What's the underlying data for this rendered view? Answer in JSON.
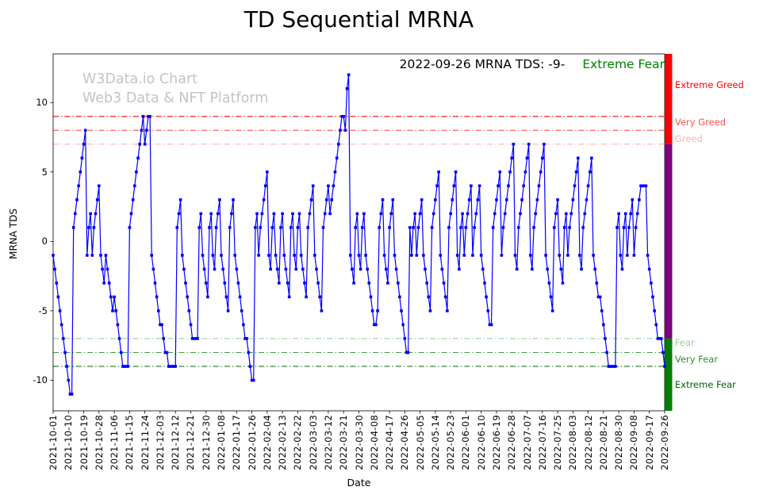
{
  "title": "TD Sequential MRNA",
  "annotation": {
    "text": "2022-09-26 MRNA TDS: -9-",
    "sentiment": "Extreme Fear",
    "sentiment_color": "#008000"
  },
  "watermark": {
    "line1": "W3Data.io Chart",
    "line2": "Web3 Data & NFT Platform"
  },
  "chart_data": {
    "type": "line",
    "title": "TD Sequential MRNA",
    "xlabel": "Date",
    "ylabel": "MRNA TDS",
    "ylim": [
      -12.2,
      13.5
    ],
    "yticks": [
      -10,
      -5,
      0,
      5,
      10
    ],
    "grid": false,
    "line_color": "#0000ff",
    "marker": "square",
    "x_tick_step": 9,
    "x_tick_labels": [
      "2021-10-01",
      "2021-10-10",
      "2021-10-19",
      "2021-10-28",
      "2021-11-06",
      "2021-11-15",
      "2021-11-24",
      "2021-12-03",
      "2021-12-12",
      "2021-12-21",
      "2021-12-30",
      "2022-01-08",
      "2022-01-17",
      "2022-01-26",
      "2022-02-04",
      "2022-02-13",
      "2022-02-22",
      "2022-03-03",
      "2022-03-12",
      "2022-03-21",
      "2022-03-30",
      "2022-04-08",
      "2022-04-17",
      "2022-04-26",
      "2022-05-05",
      "2022-05-14",
      "2022-05-23",
      "2022-06-01",
      "2022-06-10",
      "2022-06-19",
      "2022-06-28",
      "2022-07-07",
      "2022-07-16",
      "2022-07-25",
      "2022-08-03",
      "2022-08-12",
      "2022-08-21",
      "2022-08-30",
      "2022-09-08",
      "2022-09-17",
      "2022-09-26"
    ],
    "values": [
      -1,
      -2,
      -3,
      -4,
      -5,
      -6,
      -7,
      -8,
      -9,
      -10,
      -11,
      -11,
      1,
      2,
      3,
      4,
      5,
      6,
      7,
      8,
      -1,
      1,
      2,
      -1,
      1,
      2,
      3,
      4,
      -1,
      -2,
      -3,
      -1,
      -2,
      -3,
      -4,
      -5,
      -4,
      -5,
      -6,
      -7,
      -8,
      -9,
      -9,
      -9,
      -9,
      1,
      2,
      3,
      4,
      5,
      6,
      7,
      8,
      9,
      7,
      8,
      9,
      9,
      -1,
      -2,
      -3,
      -4,
      -5,
      -6,
      -6,
      -7,
      -8,
      -8,
      -9,
      -9,
      -9,
      -9,
      -9,
      1,
      2,
      3,
      -1,
      -2,
      -3,
      -4,
      -5,
      -6,
      -7,
      -7,
      -7,
      -7,
      1,
      2,
      -1,
      -2,
      -3,
      -4,
      1,
      2,
      -1,
      -2,
      1,
      2,
      3,
      -1,
      -2,
      -3,
      -4,
      -5,
      1,
      2,
      3,
      -1,
      -2,
      -3,
      -4,
      -5,
      -6,
      -7,
      -7,
      -8,
      -9,
      -10,
      -10,
      1,
      2,
      -1,
      1,
      2,
      3,
      4,
      5,
      -1,
      -2,
      1,
      2,
      -1,
      -2,
      -3,
      1,
      2,
      -1,
      -2,
      -3,
      -4,
      1,
      2,
      -1,
      -2,
      1,
      2,
      -1,
      -2,
      -3,
      -4,
      1,
      2,
      3,
      4,
      -1,
      -2,
      -3,
      -4,
      -5,
      1,
      2,
      3,
      4,
      2,
      3,
      4,
      5,
      6,
      7,
      8,
      9,
      9,
      8,
      11,
      12,
      -1,
      -2,
      -3,
      1,
      2,
      -1,
      -2,
      1,
      2,
      -1,
      -2,
      -3,
      -4,
      -5,
      -6,
      -6,
      -5,
      1,
      2,
      3,
      -1,
      -2,
      -3,
      1,
      2,
      3,
      -1,
      -2,
      -3,
      -4,
      -5,
      -6,
      -7,
      -8,
      -8,
      1,
      -1,
      1,
      2,
      -1,
      1,
      2,
      3,
      -1,
      -2,
      -3,
      -4,
      -5,
      1,
      2,
      3,
      4,
      5,
      -1,
      -2,
      -3,
      -4,
      -5,
      1,
      2,
      3,
      4,
      5,
      -1,
      -2,
      1,
      2,
      -1,
      1,
      2,
      3,
      4,
      -1,
      1,
      2,
      3,
      4,
      -1,
      -2,
      -3,
      -4,
      -5,
      -6,
      -6,
      1,
      2,
      3,
      4,
      5,
      -1,
      1,
      2,
      3,
      4,
      5,
      6,
      7,
      -1,
      -2,
      1,
      2,
      3,
      4,
      5,
      6,
      7,
      -1,
      -2,
      1,
      2,
      3,
      4,
      5,
      6,
      7,
      -1,
      -2,
      -3,
      -4,
      -5,
      1,
      2,
      3,
      -1,
      -2,
      -3,
      1,
      2,
      -1,
      1,
      2,
      3,
      4,
      5,
      6,
      -1,
      -2,
      1,
      2,
      3,
      4,
      5,
      6,
      -1,
      -2,
      -3,
      -4,
      -4,
      -5,
      -6,
      -7,
      -8,
      -9,
      -9,
      -9,
      -9,
      -9,
      1,
      2,
      -1,
      -2,
      1,
      2,
      -1,
      1,
      2,
      3,
      -1,
      1,
      2,
      3,
      4,
      4,
      4,
      4,
      -1,
      -2,
      -3,
      -4,
      -5,
      -6,
      -7,
      -7,
      -7,
      -8,
      -9
    ],
    "thresholds": [
      {
        "value": 9,
        "color": "#ff0000"
      },
      {
        "value": 8,
        "color": "#ff5050"
      },
      {
        "value": 7,
        "color": "#ffb0b0"
      },
      {
        "value": -7,
        "color": "#9ccc9c"
      },
      {
        "value": -8,
        "color": "#3da03d"
      },
      {
        "value": -9,
        "color": "#006400"
      }
    ],
    "zone_labels": [
      {
        "text": "Extreme Greed",
        "y": 11.3,
        "color": "#ff0000"
      },
      {
        "text": "Very Greed",
        "y": 8.6,
        "color": "#ff5050"
      },
      {
        "text": "Greed",
        "y": 7.4,
        "color": "#ffb0b0"
      },
      {
        "text": "Fear",
        "y": -7.3,
        "color": "#9ccc9c"
      },
      {
        "text": "Very Fear",
        "y": -8.5,
        "color": "#2e8b2e"
      },
      {
        "text": "Extreme Fear",
        "y": -10.3,
        "color": "#006400"
      }
    ],
    "sentiment_bar": [
      {
        "from": 13.5,
        "to": 7,
        "color": "#ff0000"
      },
      {
        "from": 7,
        "to": -7,
        "color": "#800080"
      },
      {
        "from": -7,
        "to": -12.2,
        "color": "#008000"
      }
    ]
  }
}
